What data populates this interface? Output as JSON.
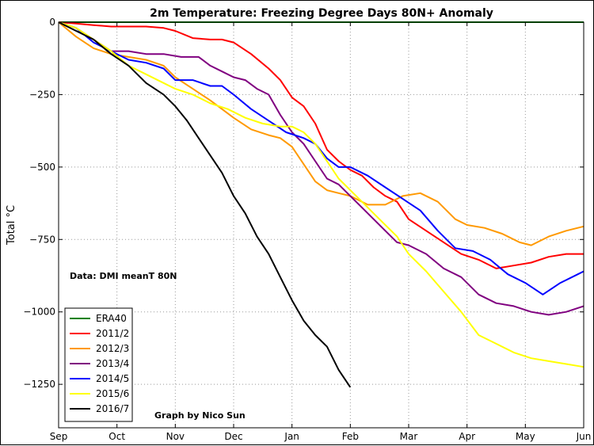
{
  "chart_data": {
    "type": "line",
    "title": "2m Temperature: Freezing Degree Days 80N+ Anomaly",
    "xlabel": "",
    "ylabel": "Total °C",
    "x_categories": [
      "Sep",
      "Oct",
      "Nov",
      "Dec",
      "Jan",
      "Feb",
      "Mar",
      "Apr",
      "May",
      "Jun"
    ],
    "xlim": [
      0,
      9
    ],
    "ylim": [
      -1400,
      0
    ],
    "yticks": [
      0,
      -250,
      -500,
      -750,
      -1000,
      -1250
    ],
    "ytick_labels": [
      "0",
      "−250",
      "−500",
      "−750",
      "−1000",
      "−1250"
    ],
    "grid": true,
    "legend_position": "lower-left",
    "annotations": [
      "Data: DMI meanT 80N",
      "Graph by Nico Sun"
    ],
    "series": [
      {
        "name": "ERA40",
        "color": "#008000",
        "x": [
          0,
          9
        ],
        "y": [
          0,
          0
        ]
      },
      {
        "name": "2011/2",
        "color": "#ff0000",
        "x": [
          0,
          0.3,
          0.6,
          0.9,
          1.2,
          1.5,
          1.8,
          2.0,
          2.3,
          2.6,
          2.8,
          3.0,
          3.3,
          3.6,
          3.8,
          4.0,
          4.2,
          4.4,
          4.6,
          4.8,
          5.0,
          5.2,
          5.4,
          5.6,
          5.8,
          6.0,
          6.3,
          6.6,
          6.9,
          7.2,
          7.5,
          7.8,
          8.1,
          8.4,
          8.7,
          9.0
        ],
        "y": [
          0,
          -5,
          -10,
          -15,
          -15,
          -15,
          -20,
          -30,
          -55,
          -60,
          -60,
          -70,
          -110,
          -160,
          -200,
          -260,
          -290,
          -350,
          -440,
          -480,
          -510,
          -530,
          -570,
          -600,
          -620,
          -680,
          -720,
          -760,
          -800,
          -820,
          -850,
          -840,
          -830,
          -810,
          -800,
          -800
        ]
      },
      {
        "name": "2012/3",
        "color": "#ff9900",
        "x": [
          0,
          0.3,
          0.6,
          0.9,
          1.2,
          1.5,
          1.8,
          2.0,
          2.3,
          2.6,
          2.8,
          3.0,
          3.3,
          3.6,
          3.8,
          4.0,
          4.2,
          4.4,
          4.6,
          4.8,
          5.0,
          5.3,
          5.6,
          5.9,
          6.2,
          6.5,
          6.8,
          7.0,
          7.3,
          7.6,
          7.9,
          8.1,
          8.4,
          8.7,
          9.0
        ],
        "y": [
          0,
          -50,
          -90,
          -110,
          -120,
          -130,
          -150,
          -190,
          -230,
          -270,
          -300,
          -330,
          -370,
          -390,
          -400,
          -430,
          -490,
          -550,
          -580,
          -590,
          -600,
          -630,
          -630,
          -600,
          -590,
          -620,
          -680,
          -700,
          -710,
          -730,
          -760,
          -770,
          -740,
          -720,
          -705
        ]
      },
      {
        "name": "2013/4",
        "color": "#800080",
        "x": [
          0,
          0.3,
          0.6,
          0.9,
          1.2,
          1.5,
          1.8,
          2.1,
          2.4,
          2.6,
          2.8,
          3.0,
          3.2,
          3.4,
          3.6,
          3.8,
          4.0,
          4.2,
          4.4,
          4.6,
          4.8,
          5.0,
          5.2,
          5.4,
          5.6,
          5.8,
          6.0,
          6.3,
          6.6,
          6.9,
          7.2,
          7.5,
          7.8,
          8.1,
          8.4,
          8.7,
          9.0
        ],
        "y": [
          0,
          -20,
          -60,
          -100,
          -100,
          -110,
          -110,
          -120,
          -120,
          -150,
          -170,
          -190,
          -200,
          -230,
          -250,
          -320,
          -380,
          -420,
          -480,
          -540,
          -560,
          -600,
          -640,
          -680,
          -720,
          -760,
          -770,
          -800,
          -850,
          -880,
          -940,
          -970,
          -980,
          -1000,
          -1010,
          -1000,
          -980
        ]
      },
      {
        "name": "2014/5",
        "color": "#0000ff",
        "x": [
          0,
          0.3,
          0.6,
          0.9,
          1.2,
          1.5,
          1.8,
          2.0,
          2.3,
          2.6,
          2.8,
          3.0,
          3.3,
          3.6,
          3.9,
          4.2,
          4.4,
          4.6,
          4.8,
          5.0,
          5.3,
          5.6,
          5.9,
          6.2,
          6.5,
          6.8,
          7.1,
          7.4,
          7.7,
          8.0,
          8.3,
          8.6,
          8.9,
          9.0
        ],
        "y": [
          0,
          -20,
          -70,
          -100,
          -130,
          -140,
          -160,
          -200,
          -200,
          -220,
          -220,
          -250,
          -300,
          -340,
          -380,
          -400,
          -420,
          -470,
          -500,
          -500,
          -530,
          -570,
          -610,
          -650,
          -720,
          -780,
          -790,
          -820,
          -870,
          -900,
          -940,
          -900,
          -870,
          -860
        ]
      },
      {
        "name": "2015/6",
        "color": "#ffff00",
        "x": [
          0,
          0.3,
          0.6,
          0.9,
          1.2,
          1.5,
          1.8,
          2.0,
          2.3,
          2.6,
          2.9,
          3.2,
          3.5,
          3.8,
          4.0,
          4.2,
          4.4,
          4.6,
          4.8,
          5.0,
          5.2,
          5.4,
          5.6,
          5.8,
          6.0,
          6.3,
          6.6,
          6.9,
          7.2,
          7.5,
          7.8,
          8.1,
          8.4,
          8.7,
          9.0
        ],
        "y": [
          0,
          -20,
          -60,
          -100,
          -150,
          -180,
          -210,
          -230,
          -250,
          -280,
          -300,
          -330,
          -350,
          -360,
          -360,
          -380,
          -420,
          -480,
          -540,
          -580,
          -620,
          -660,
          -700,
          -740,
          -800,
          -860,
          -930,
          -1000,
          -1080,
          -1110,
          -1140,
          -1160,
          -1170,
          -1180,
          -1190
        ]
      },
      {
        "name": "2016/7",
        "color": "#000000",
        "x": [
          0,
          0.3,
          0.6,
          0.9,
          1.2,
          1.5,
          1.8,
          2.0,
          2.2,
          2.4,
          2.6,
          2.8,
          3.0,
          3.2,
          3.4,
          3.6,
          3.8,
          4.0,
          4.2,
          4.4,
          4.6,
          4.8,
          5.0
        ],
        "y": [
          0,
          -30,
          -60,
          -110,
          -150,
          -210,
          -250,
          -290,
          -340,
          -400,
          -460,
          -520,
          -600,
          -660,
          -740,
          -800,
          -880,
          -960,
          -1030,
          -1080,
          -1120,
          -1200,
          -1260
        ]
      }
    ]
  }
}
